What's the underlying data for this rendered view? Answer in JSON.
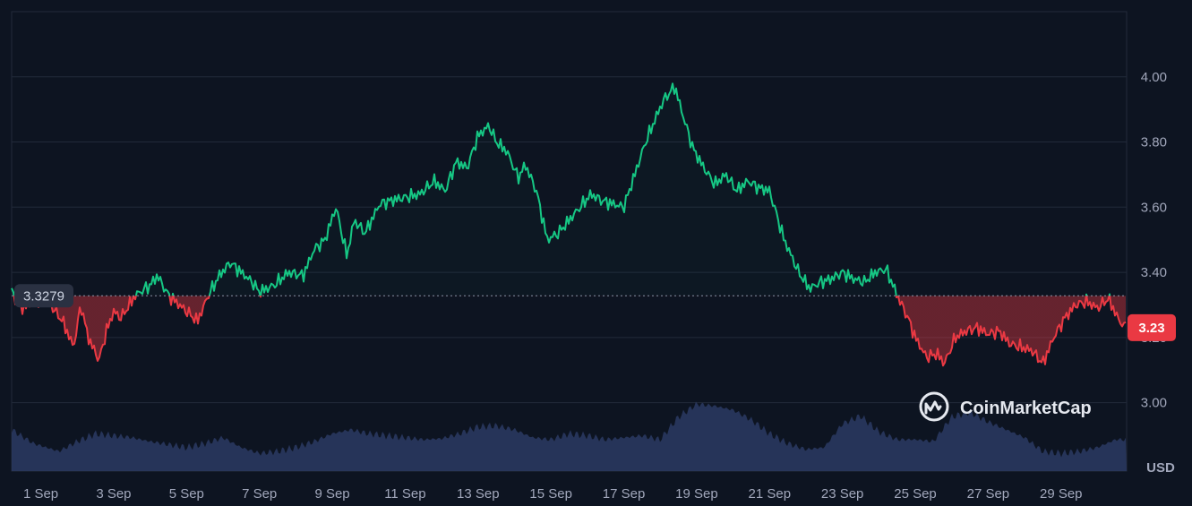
{
  "chart_data": {
    "type": "area",
    "unit": "USD",
    "reference_value": 3.3279,
    "reference_label": "3.3279",
    "last_value": 3.23,
    "last_value_label": "3.23",
    "ylim": [
      2.79,
      4.2
    ],
    "yticks": [
      "3.00",
      "3.20",
      "3.40",
      "3.60",
      "3.80",
      "4.00"
    ],
    "ytick_values": [
      3.0,
      3.2,
      3.4,
      3.6,
      3.8,
      4.0
    ],
    "xlim": [
      0.2,
      30.8
    ],
    "x_tick_labels": [
      "1 Sep",
      "3 Sep",
      "5 Sep",
      "7 Sep",
      "9 Sep",
      "11 Sep",
      "13 Sep",
      "15 Sep",
      "17 Sep",
      "19 Sep",
      "21 Sep",
      "23 Sep",
      "25 Sep",
      "27 Sep",
      "29 Sep"
    ],
    "x_tick_days": [
      1,
      3,
      5,
      7,
      9,
      11,
      13,
      15,
      17,
      19,
      21,
      23,
      25,
      27,
      29
    ],
    "colors": {
      "up": "#16c784",
      "down": "#ea3943",
      "volume": "#2b3a63",
      "grid": "#222a3a",
      "background": "#0d1421"
    },
    "series": [
      {
        "values_day": [
          0.2,
          0.5,
          0.8,
          1.2,
          1.6,
          1.9,
          2.1,
          2.3,
          2.6,
          2.8,
          3.0,
          3.2,
          3.6,
          4.0,
          4.2,
          4.5,
          4.8,
          5.0,
          5.3,
          5.6,
          5.9,
          6.2,
          6.5,
          6.8,
          7.0,
          7.4,
          7.8,
          8.2,
          8.5,
          8.8,
          9.1,
          9.4,
          9.6,
          9.9,
          10.3,
          10.6,
          11.0,
          11.4,
          11.8,
          12.1,
          12.4,
          12.7,
          13.0,
          13.3,
          13.5,
          13.8,
          14.1,
          14.3,
          14.6,
          14.9,
          15.2,
          15.5,
          15.8,
          16.1,
          16.4,
          16.7,
          17.0,
          17.3,
          17.6,
          17.9,
          18.1,
          18.4,
          18.6,
          18.9,
          19.2,
          19.5,
          19.8,
          20.1,
          20.4,
          20.7,
          21.0,
          21.4,
          21.8,
          22.1,
          22.4,
          22.7,
          23.0,
          23.3,
          23.6,
          23.9,
          24.2,
          24.5,
          24.8,
          25.0,
          25.3,
          25.6,
          25.8,
          26.1,
          26.4,
          26.7,
          27.0,
          27.3,
          27.6,
          27.9,
          28.2,
          28.5,
          28.8,
          29.1,
          29.4,
          29.7,
          30.0,
          30.3,
          30.6,
          30.8
        ],
        "values": [
          3.34,
          3.29,
          3.31,
          3.31,
          3.25,
          3.17,
          3.3,
          3.2,
          3.13,
          3.22,
          3.28,
          3.26,
          3.33,
          3.36,
          3.39,
          3.33,
          3.3,
          3.28,
          3.25,
          3.33,
          3.39,
          3.43,
          3.4,
          3.37,
          3.34,
          3.36,
          3.4,
          3.39,
          3.47,
          3.5,
          3.6,
          3.45,
          3.56,
          3.52,
          3.61,
          3.62,
          3.63,
          3.64,
          3.68,
          3.65,
          3.74,
          3.72,
          3.82,
          3.85,
          3.8,
          3.77,
          3.69,
          3.73,
          3.65,
          3.5,
          3.52,
          3.56,
          3.6,
          3.64,
          3.62,
          3.61,
          3.6,
          3.7,
          3.8,
          3.88,
          3.93,
          3.97,
          3.89,
          3.78,
          3.72,
          3.67,
          3.7,
          3.65,
          3.68,
          3.66,
          3.65,
          3.5,
          3.4,
          3.35,
          3.37,
          3.38,
          3.4,
          3.38,
          3.37,
          3.4,
          3.41,
          3.33,
          3.26,
          3.2,
          3.14,
          3.15,
          3.12,
          3.2,
          3.22,
          3.23,
          3.21,
          3.22,
          3.18,
          3.17,
          3.16,
          3.12,
          3.2,
          3.26,
          3.3,
          3.31,
          3.29,
          3.32,
          3.25,
          3.23
        ]
      }
    ],
    "volume": {
      "x_day": [
        0.2,
        0.8,
        1.5,
        2.0,
        2.5,
        3.0,
        3.5,
        4.0,
        4.5,
        5.0,
        5.5,
        6.0,
        6.5,
        7.0,
        7.5,
        8.0,
        8.5,
        9.0,
        9.5,
        10.0,
        10.5,
        11.0,
        11.5,
        12.0,
        12.5,
        13.0,
        13.5,
        14.0,
        14.5,
        15.0,
        15.5,
        16.0,
        16.5,
        17.0,
        17.5,
        18.0,
        18.5,
        19.0,
        19.5,
        20.0,
        20.5,
        21.0,
        21.5,
        22.0,
        22.5,
        23.0,
        23.5,
        24.0,
        24.5,
        25.0,
        25.5,
        26.0,
        26.5,
        27.0,
        27.5,
        28.0,
        28.5,
        29.0,
        29.5,
        30.0,
        30.5,
        30.8
      ],
      "values": [
        0.42,
        0.28,
        0.2,
        0.3,
        0.38,
        0.36,
        0.34,
        0.3,
        0.27,
        0.24,
        0.28,
        0.34,
        0.24,
        0.18,
        0.2,
        0.24,
        0.3,
        0.38,
        0.42,
        0.38,
        0.36,
        0.34,
        0.32,
        0.33,
        0.38,
        0.45,
        0.46,
        0.42,
        0.34,
        0.32,
        0.38,
        0.36,
        0.32,
        0.34,
        0.36,
        0.32,
        0.55,
        0.68,
        0.66,
        0.62,
        0.52,
        0.38,
        0.28,
        0.22,
        0.24,
        0.48,
        0.56,
        0.4,
        0.32,
        0.32,
        0.3,
        0.55,
        0.6,
        0.5,
        0.42,
        0.34,
        0.2,
        0.18,
        0.2,
        0.24,
        0.32,
        0.32
      ]
    }
  },
  "axis": {
    "unit_label": "USD"
  },
  "watermark": {
    "brand": "CoinMarketCap"
  }
}
